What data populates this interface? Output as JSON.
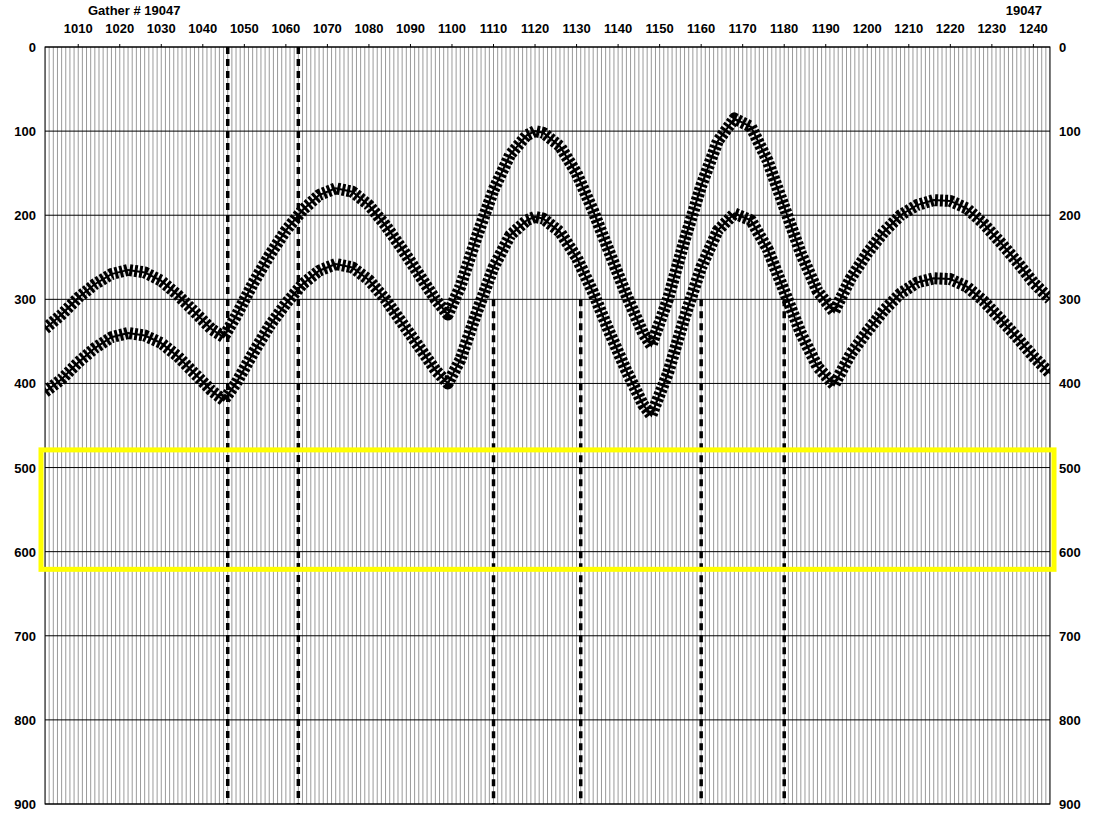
{
  "chart_data": {
    "type": "seismic_gather",
    "title": "Gather #  19047",
    "title_right": "19047",
    "xlim": [
      1002,
      1244
    ],
    "ylim": [
      0,
      900
    ],
    "xticks": [
      1010,
      1020,
      1030,
      1040,
      1050,
      1060,
      1070,
      1080,
      1090,
      1100,
      1110,
      1120,
      1130,
      1140,
      1150,
      1160,
      1170,
      1180,
      1190,
      1200,
      1210,
      1220,
      1230,
      1240
    ],
    "yticks": [
      0,
      100,
      200,
      300,
      400,
      500,
      600,
      700,
      800,
      900
    ],
    "grid": true,
    "x": [
      1002,
      1006,
      1010,
      1014,
      1018,
      1022,
      1026,
      1030,
      1034,
      1038,
      1042,
      1045,
      1048,
      1052,
      1056,
      1060,
      1064,
      1068,
      1072,
      1076,
      1080,
      1084,
      1088,
      1092,
      1096,
      1099,
      1102,
      1106,
      1110,
      1114,
      1118,
      1120,
      1122,
      1126,
      1130,
      1134,
      1138,
      1142,
      1146,
      1148,
      1152,
      1156,
      1160,
      1164,
      1168,
      1172,
      1176,
      1180,
      1184,
      1188,
      1192,
      1196,
      1200,
      1204,
      1208,
      1212,
      1216,
      1220,
      1224,
      1228,
      1232,
      1236,
      1240,
      1244
    ],
    "series": [
      {
        "color": "#000000",
        "line_style": "wiggle",
        "values": [
          335,
          318,
          298,
          282,
          270,
          265,
          268,
          278,
          295,
          315,
          335,
          345,
          320,
          282,
          248,
          218,
          194,
          176,
          168,
          172,
          188,
          212,
          240,
          270,
          300,
          318,
          285,
          225,
          170,
          128,
          105,
          100,
          102,
          118,
          150,
          195,
          245,
          295,
          340,
          355,
          300,
          230,
          165,
          112,
          85,
          95,
          135,
          190,
          245,
          290,
          315,
          275,
          245,
          220,
          200,
          188,
          182,
          183,
          192,
          210,
          232,
          255,
          280,
          300
        ]
      },
      {
        "color": "#000000",
        "line_style": "wiggle",
        "values": [
          410,
          395,
          375,
          358,
          345,
          340,
          343,
          352,
          368,
          388,
          408,
          420,
          400,
          365,
          332,
          305,
          282,
          266,
          258,
          262,
          277,
          300,
          328,
          356,
          384,
          400,
          372,
          315,
          262,
          224,
          206,
          202,
          204,
          220,
          250,
          292,
          340,
          385,
          425,
          438,
          388,
          322,
          262,
          218,
          198,
          206,
          240,
          290,
          340,
          380,
          402,
          365,
          338,
          313,
          293,
          280,
          275,
          276,
          285,
          302,
          323,
          345,
          368,
          388
        ]
      }
    ],
    "noisy_traces": [
      {
        "trace": 1046,
        "from": 0
      },
      {
        "trace": 1063,
        "from": 0
      },
      {
        "trace": 1110,
        "from": 300
      },
      {
        "trace": 1131,
        "from": 300
      },
      {
        "trace": 1160,
        "from": 300
      },
      {
        "trace": 1180,
        "from": 300
      }
    ],
    "highlight": {
      "y": [
        479,
        621
      ],
      "color": "#ffff00"
    }
  }
}
